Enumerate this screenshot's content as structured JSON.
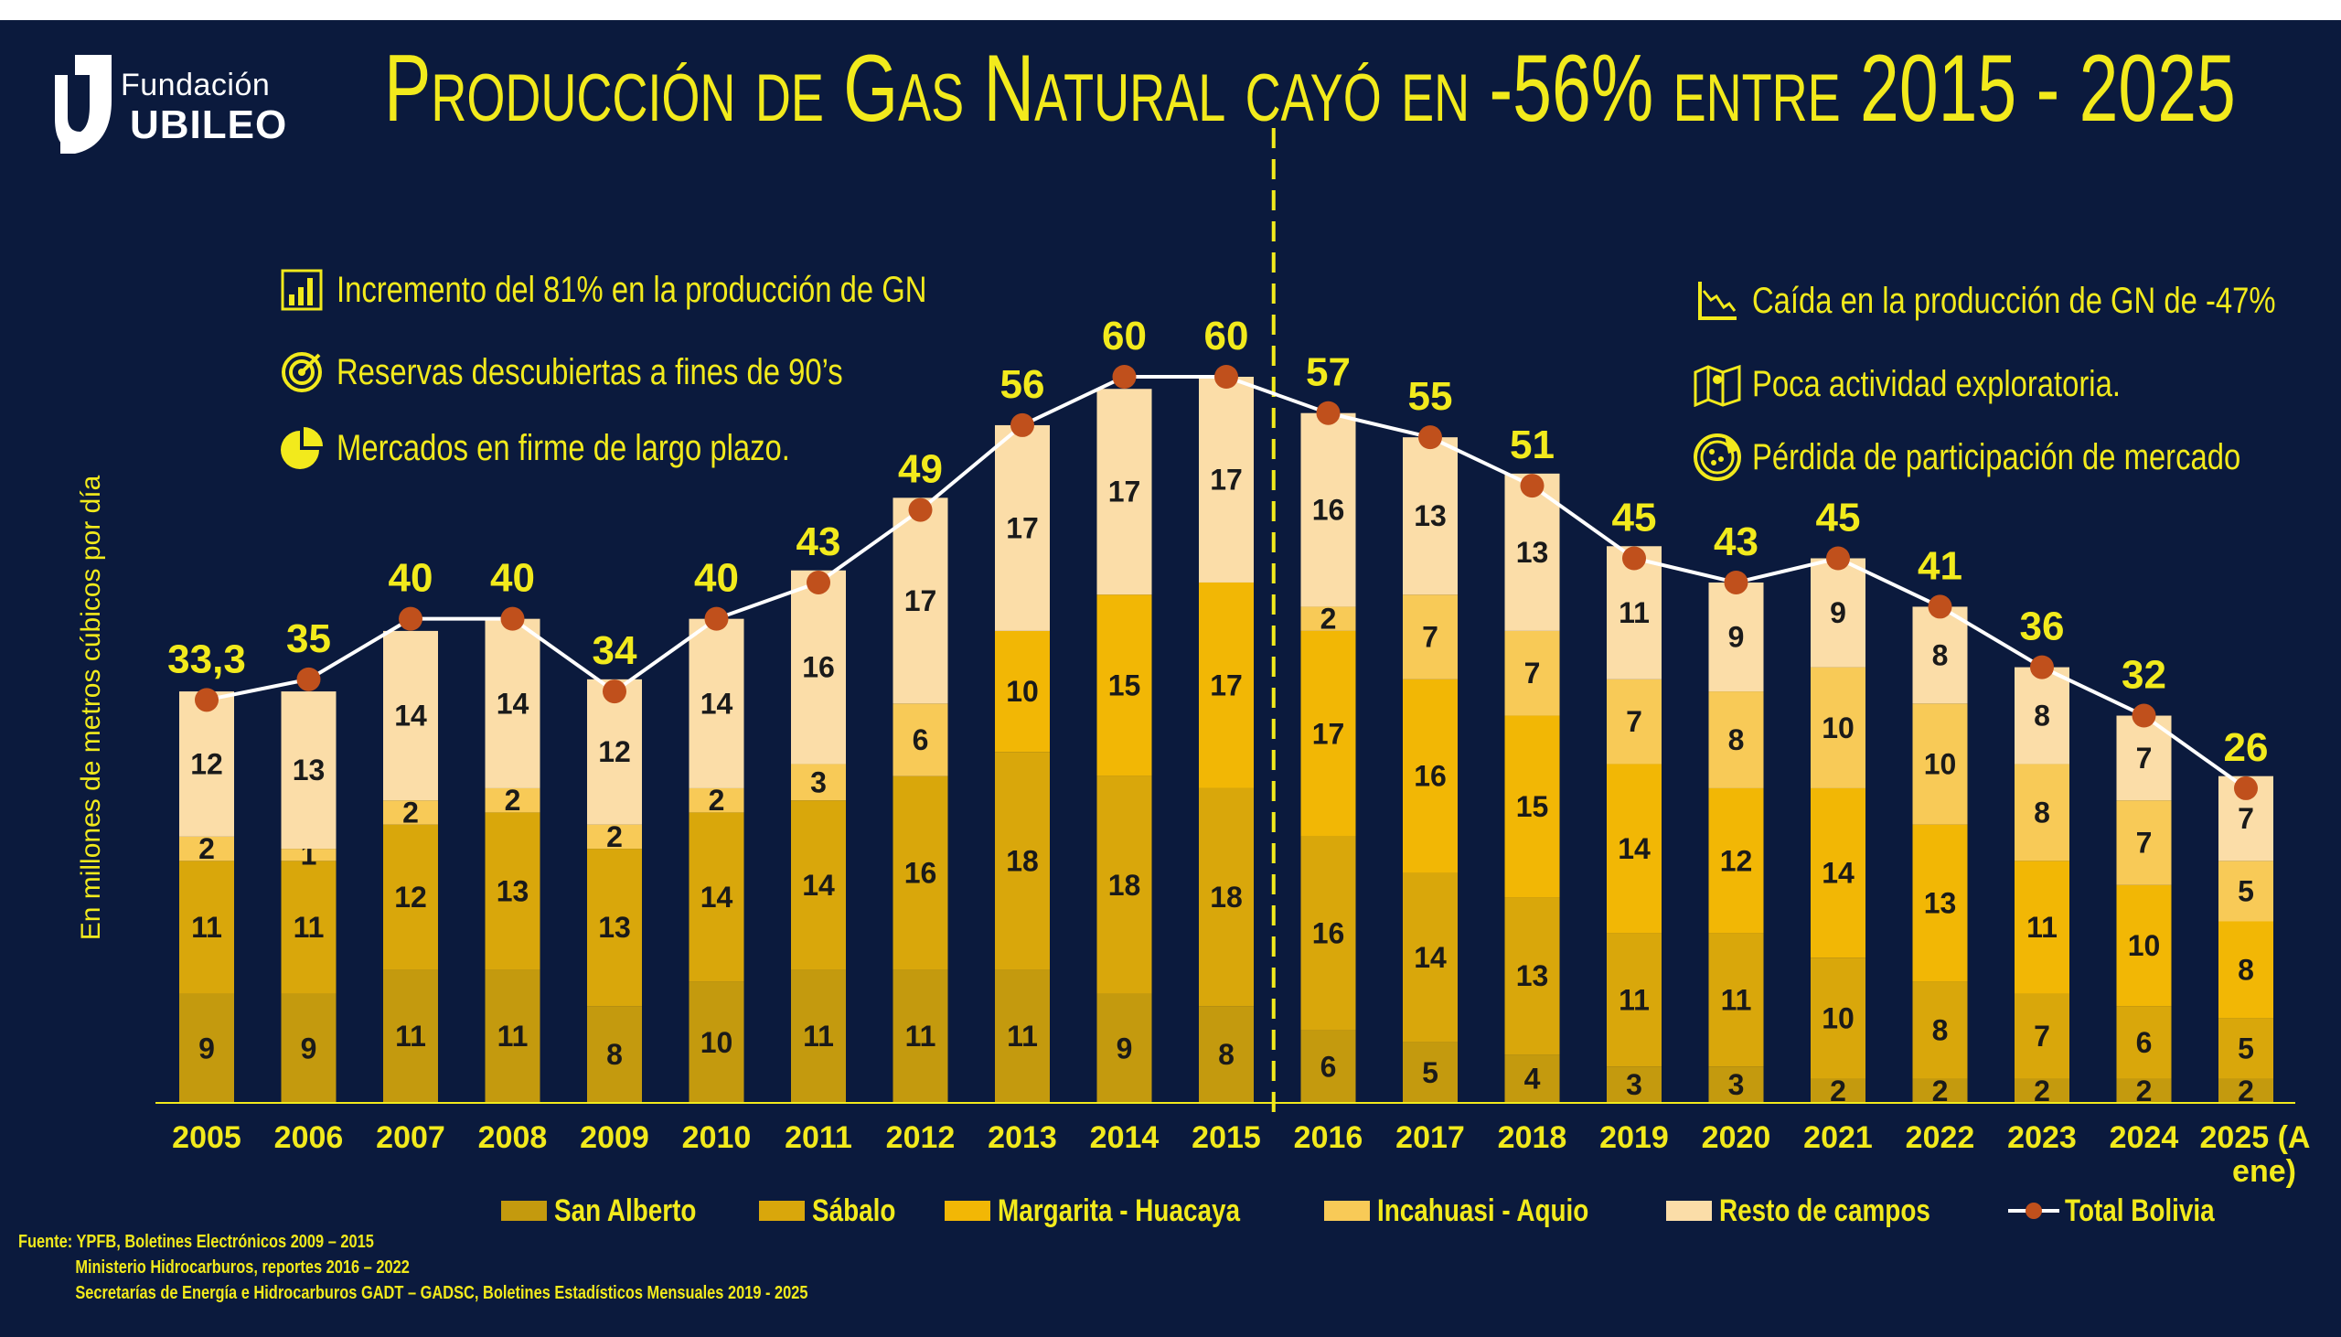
{
  "brand": {
    "line1": "Fundación",
    "line2": "UBILEO"
  },
  "title": "Producción de Gas Natural cayó en -56% entre 2015 - 2025",
  "left_annotations": [
    {
      "icon": "bar-chart-icon",
      "text": "Incremento del 81% en la producción de GN"
    },
    {
      "icon": "target-icon",
      "text": "Reservas descubiertas a fines de 90’s"
    },
    {
      "icon": "pie-chart-icon",
      "text": "Mercados en firme de largo plazo."
    }
  ],
  "right_annotations": [
    {
      "icon": "declining-chart-icon",
      "text": "Caída en la producción de GN de -47%"
    },
    {
      "icon": "map-icon",
      "text": "Poca actividad exploratoria."
    },
    {
      "icon": "pizza-icon",
      "text": "Pérdida de participación de mercado"
    }
  ],
  "colors": {
    "background": "#0b1a3d",
    "accent": "#f2ea1c",
    "san_alberto": "#c49a0e",
    "sabalo": "#d9a70b",
    "margarita": "#f2b705",
    "incahuasi": "#f8ca57",
    "resto": "#fbdda8",
    "total_line": "#ffffff",
    "total_marker": "#c0501c"
  },
  "source": {
    "line1": "Fuente: YPFB, Boletines Electrónicos 2009 – 2015",
    "line2": "Ministerio Hidrocarburos, reportes 2016 – 2022",
    "line3": "Secretarías de Energía e Hidrocarburos GADT – GADSC, Boletines Estadísticos Mensuales 2019 - 2025"
  },
  "chart_data": {
    "type": "bar",
    "stacked": true,
    "title": "Producción de Gas Natural cayó en -56% entre 2015 - 2025",
    "ylabel": "En millones de metros cúbicos por día",
    "xlabel": "",
    "categories": [
      "2005",
      "2006",
      "2007",
      "2008",
      "2009",
      "2010",
      "2011",
      "2012",
      "2013",
      "2014",
      "2015",
      "2016",
      "2017",
      "2018",
      "2019",
      "2020",
      "2021",
      "2022",
      "2023",
      "2024",
      "2025 (A ene)"
    ],
    "series": [
      {
        "name": "San Alberto",
        "values": [
          9,
          9,
          11,
          11,
          8,
          10,
          11,
          11,
          11,
          9,
          8,
          6,
          5,
          4,
          3,
          3,
          2,
          2,
          2,
          2,
          2
        ]
      },
      {
        "name": "Sábalo",
        "values": [
          11,
          11,
          12,
          13,
          13,
          14,
          14,
          16,
          18,
          18,
          18,
          16,
          14,
          13,
          11,
          11,
          10,
          8,
          7,
          6,
          5
        ]
      },
      {
        "name": "Margarita - Huacaya",
        "values": [
          0,
          0,
          0,
          0,
          0,
          0,
          0,
          0,
          10,
          15,
          17,
          17,
          16,
          15,
          14,
          12,
          14,
          13,
          11,
          10,
          8
        ]
      },
      {
        "name": "Incahuasi - Aquio",
        "values": [
          2,
          1,
          2,
          2,
          2,
          2,
          3,
          6,
          0,
          0,
          0,
          2,
          7,
          7,
          7,
          8,
          10,
          10,
          8,
          7,
          5
        ]
      },
      {
        "name": "Resto de campos",
        "values": [
          12,
          13,
          14,
          14,
          12,
          14,
          16,
          17,
          17,
          17,
          17,
          16,
          13,
          13,
          11,
          9,
          9,
          8,
          8,
          7,
          7
        ]
      }
    ],
    "segment_labels": [
      [
        "9",
        "11",
        "",
        "2",
        "12"
      ],
      [
        "9",
        "11",
        "",
        "1",
        "13"
      ],
      [
        "11",
        "12",
        "",
        "2",
        "14"
      ],
      [
        "11",
        "13",
        "",
        "2",
        "14"
      ],
      [
        "8",
        "13",
        "",
        "2",
        "12"
      ],
      [
        "10",
        "14",
        "",
        "2",
        "14"
      ],
      [
        "11",
        "14",
        "",
        "3",
        "16"
      ],
      [
        "11",
        "16",
        "",
        "6",
        "17"
      ],
      [
        "11",
        "18",
        "10",
        "",
        "17"
      ],
      [
        "9",
        "18",
        "15",
        "",
        "17"
      ],
      [
        "8",
        "18",
        "17",
        "",
        "17"
      ],
      [
        "6",
        "16",
        "17",
        "2",
        "16"
      ],
      [
        "5",
        "14",
        "16",
        "7",
        "13"
      ],
      [
        "4",
        "13",
        "15",
        "7",
        "13"
      ],
      [
        "3",
        "11",
        "14",
        "7",
        "11"
      ],
      [
        "3",
        "11",
        "12",
        "8",
        "9"
      ],
      [
        "2",
        "10",
        "14",
        "10",
        "9"
      ],
      [
        "2",
        "8",
        "13",
        "10",
        "8"
      ],
      [
        "2",
        "7",
        "11",
        "8",
        "8"
      ],
      [
        "2",
        "6",
        "10",
        "7",
        "7"
      ],
      [
        "2",
        "5",
        "8",
        "5",
        "7"
      ]
    ],
    "total": {
      "name": "Total Bolivia",
      "values": [
        33.3,
        35,
        40,
        40,
        34,
        40,
        43,
        49,
        56,
        60,
        60,
        57,
        55,
        51,
        45,
        43,
        45,
        41,
        36,
        32,
        26
      ],
      "labels": [
        "33,3",
        "35",
        "40",
        "40",
        "34",
        "40",
        "43",
        "49",
        "56",
        "60",
        "60",
        "57",
        "55",
        "51",
        "45",
        "43",
        "45",
        "41",
        "36",
        "32",
        "26"
      ]
    },
    "ylim": [
      0,
      62
    ],
    "divider_after_category": "2015",
    "grid": false,
    "legend_position": "bottom"
  }
}
